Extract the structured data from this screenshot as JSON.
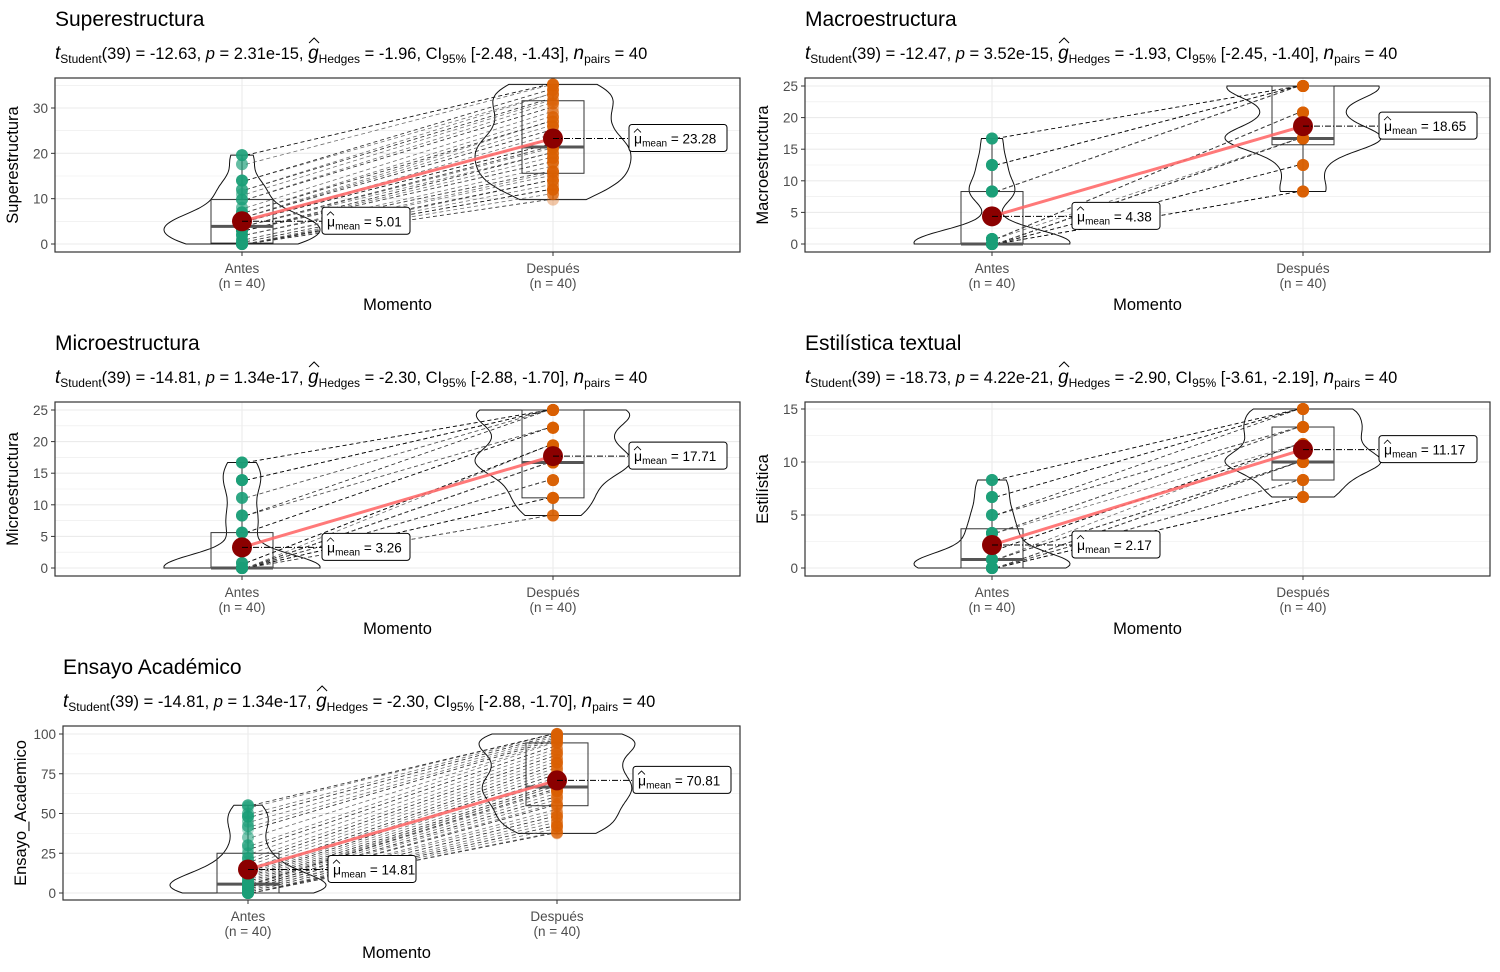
{
  "chart_data": [
    {
      "type": "violin-box-paired",
      "title": "Superestructura",
      "subtitle": {
        "t_label": "t",
        "t_sub": "Student",
        "df": "(39)",
        "t_value": "-12.63",
        "p_label": "p",
        "p_value": "2.31e-15",
        "g_label": "g",
        "g_sub": "Hedges",
        "g_value": "-1.96",
        "ci_label": "CI",
        "ci_sub": "95%",
        "ci_value": "[-2.48, -1.43]",
        "n_label": "n",
        "n_sub": "pairs",
        "n_value": "40"
      },
      "xlabel": "Momento",
      "ylabel": "Superestructura",
      "categories": [
        "Antes",
        "Después"
      ],
      "category_n": [
        "(n = 40)",
        "(n = 40)"
      ],
      "yticks": [
        0,
        10,
        20,
        30
      ],
      "ylim": [
        -1.5,
        36.5
      ],
      "means": [
        5.01,
        23.28
      ],
      "mean_labels": [
        "5.01",
        "23.28"
      ],
      "medians": [
        3.9,
        21.4
      ],
      "q1": [
        0.2,
        15.6
      ],
      "q3": [
        9.8,
        31.6
      ],
      "min": [
        0,
        9.8
      ],
      "max": [
        19.6,
        35.2
      ],
      "points": [
        [
          0,
          0,
          0,
          0,
          0,
          0,
          0.5,
          1,
          1,
          2,
          2,
          2,
          3,
          3,
          3,
          3,
          4,
          4,
          4,
          4,
          5,
          5,
          5,
          5,
          6,
          6,
          6,
          7,
          7,
          8,
          9.8,
          9.8,
          11,
          12,
          12,
          14,
          14,
          17.6,
          19.6,
          19.6
        ],
        [
          9.8,
          11,
          12,
          12,
          13,
          14,
          14,
          15,
          15.6,
          16,
          16,
          17,
          18,
          18,
          19,
          20,
          20,
          21,
          21.4,
          21.4,
          22,
          22,
          23,
          24,
          25,
          26,
          27,
          27,
          28,
          29,
          30,
          31,
          31.6,
          32,
          33,
          33,
          34,
          35,
          35.2,
          35.2
        ]
      ]
    },
    {
      "type": "violin-box-paired",
      "title": "Macroestructura",
      "subtitle": {
        "t_label": "t",
        "t_sub": "Student",
        "df": "(39)",
        "t_value": "-12.47",
        "p_label": "p",
        "p_value": "3.52e-15",
        "g_label": "g",
        "g_sub": "Hedges",
        "g_value": "-1.93",
        "ci_label": "CI",
        "ci_sub": "95%",
        "ci_value": "[-2.45, -1.40]",
        "n_label": "n",
        "n_sub": "pairs",
        "n_value": "40"
      },
      "xlabel": "Momento",
      "ylabel": "Macroestructura",
      "categories": [
        "Antes",
        "Después"
      ],
      "category_n": [
        "(n = 40)",
        "(n = 40)"
      ],
      "yticks": [
        0,
        5,
        10,
        15,
        20,
        25
      ],
      "ylim": [
        -1.2,
        26.2
      ],
      "means": [
        4.38,
        18.65
      ],
      "mean_labels": [
        "4.38",
        "18.65"
      ],
      "medians": [
        0,
        16.7
      ],
      "q1": [
        0,
        15.7
      ],
      "q3": [
        8.3,
        25
      ],
      "min": [
        0,
        8.3
      ],
      "max": [
        16.7,
        25
      ],
      "points": [
        [
          0,
          0,
          0,
          0,
          0,
          0,
          0,
          0,
          0,
          0,
          0,
          0,
          0,
          0,
          0,
          0,
          0,
          0,
          0,
          0,
          0.8,
          0.8,
          0.8,
          0.8,
          0.8,
          0.8,
          8.3,
          8.3,
          8.3,
          8.3,
          8.3,
          8.3,
          8.3,
          12.5,
          12.5,
          12.5,
          12.5,
          16.7,
          16.7,
          16.7
        ],
        [
          8.3,
          8.3,
          8.3,
          8.3,
          12.5,
          12.5,
          12.5,
          16.7,
          16.7,
          16.7,
          16.7,
          16.7,
          16.7,
          16.7,
          16.7,
          16.7,
          16.7,
          16.7,
          16.7,
          16.7,
          16.7,
          20.8,
          20.8,
          20.8,
          20.8,
          20.8,
          25,
          25,
          25,
          25,
          25,
          25,
          25,
          25,
          25,
          25,
          25,
          25,
          25,
          25
        ]
      ]
    },
    {
      "type": "violin-box-paired",
      "title": "Microestructura",
      "subtitle": {
        "t_label": "t",
        "t_sub": "Student",
        "df": "(39)",
        "t_value": "-14.81",
        "p_label": "p",
        "p_value": "1.34e-17",
        "g_label": "g",
        "g_sub": "Hedges",
        "g_value": "-2.30",
        "ci_label": "CI",
        "ci_sub": "95%",
        "ci_value": "[-2.88, -1.70]",
        "n_label": "n",
        "n_sub": "pairs",
        "n_value": "40"
      },
      "xlabel": "Momento",
      "ylabel": "Microestructura",
      "categories": [
        "Antes",
        "Después"
      ],
      "category_n": [
        "(n = 40)",
        "(n = 40)"
      ],
      "yticks": [
        0,
        5,
        10,
        15,
        20,
        25
      ],
      "ylim": [
        -1.2,
        26.2
      ],
      "means": [
        3.26,
        17.71
      ],
      "mean_labels": [
        "3.26",
        "17.71"
      ],
      "medians": [
        0,
        16.7
      ],
      "q1": [
        0,
        11.1
      ],
      "q3": [
        5.6,
        25
      ],
      "min": [
        0,
        8.3
      ],
      "max": [
        16.7,
        25
      ],
      "points": [
        [
          0,
          0,
          0,
          0,
          0,
          0,
          0,
          0,
          0,
          0,
          0,
          0,
          0,
          0,
          0,
          0,
          0,
          0,
          0,
          0,
          0,
          0.8,
          0.8,
          0.8,
          0.8,
          5.6,
          5.6,
          5.6,
          8.3,
          8.3,
          8.3,
          11.1,
          11.1,
          13.9,
          13.9,
          13.9,
          13.9,
          16.7,
          16.7,
          16.7
        ],
        [
          8.3,
          8.3,
          8.3,
          11.1,
          11.1,
          11.1,
          11.1,
          13.9,
          13.9,
          13.9,
          13.9,
          16.7,
          16.7,
          16.7,
          16.7,
          16.7,
          16.7,
          16.7,
          16.7,
          16.7,
          19.4,
          19.4,
          19.4,
          19.4,
          19.4,
          22.2,
          22.2,
          22.2,
          22.2,
          22.2,
          25,
          25,
          25,
          25,
          25,
          25,
          25,
          25,
          25,
          25
        ]
      ]
    },
    {
      "type": "violin-box-paired",
      "title": "Estilística textual",
      "subtitle": {
        "t_label": "t",
        "t_sub": "Student",
        "df": "(39)",
        "t_value": "-18.73",
        "p_label": "p",
        "p_value": "4.22e-21",
        "g_label": "g",
        "g_sub": "Hedges",
        "g_value": "-2.90",
        "ci_label": "CI",
        "ci_sub": "95%",
        "ci_value": "[-3.61, -2.19]",
        "n_label": "n",
        "n_sub": "pairs",
        "n_value": "40"
      },
      "xlabel": "Momento",
      "ylabel": "Estilística",
      "categories": [
        "Antes",
        "Después"
      ],
      "category_n": [
        "(n = 40)",
        "(n = 40)"
      ],
      "yticks": [
        0,
        5,
        10,
        15
      ],
      "ylim": [
        -0.7,
        15.7
      ],
      "means": [
        2.17,
        11.17
      ],
      "mean_labels": [
        "2.17",
        "11.17"
      ],
      "medians": [
        0.8,
        10
      ],
      "q1": [
        0,
        8.3
      ],
      "q3": [
        3.7,
        13.3
      ],
      "min": [
        0,
        6.7
      ],
      "max": [
        8.3,
        15
      ],
      "points": [
        [
          0,
          0,
          0,
          0,
          0,
          0,
          0,
          0,
          0,
          0,
          0,
          0,
          0,
          0,
          0.8,
          0.8,
          0.8,
          0.8,
          0.8,
          0.8,
          0.8,
          1.7,
          1.7,
          1.7,
          1.7,
          3.3,
          3.3,
          3.3,
          3.3,
          3.3,
          5,
          5,
          5,
          5,
          6.7,
          6.7,
          6.7,
          8.3,
          8.3,
          8.3
        ],
        [
          6.7,
          6.7,
          6.7,
          6.7,
          8.3,
          8.3,
          8.3,
          8.3,
          8.3,
          10,
          10,
          10,
          10,
          10,
          10,
          10,
          10,
          10,
          10,
          10,
          11.7,
          11.7,
          11.7,
          11.7,
          11.7,
          11.7,
          13.3,
          13.3,
          13.3,
          13.3,
          13.3,
          13.3,
          13.3,
          15,
          15,
          15,
          15,
          15,
          15,
          15
        ]
      ]
    },
    {
      "type": "violin-box-paired",
      "title": "Ensayo Académico",
      "subtitle": {
        "t_label": "t",
        "t_sub": "Student",
        "df": "(39)",
        "t_value": "-14.81",
        "p_label": "p",
        "p_value": "1.34e-17",
        "g_label": "g",
        "g_sub": "Hedges",
        "g_value": "-2.30",
        "ci_label": "CI",
        "ci_sub": "95%",
        "ci_value": "[-2.88, -1.70]",
        "n_label": "n",
        "n_sub": "pairs",
        "n_value": "40"
      },
      "xlabel": "Momento",
      "ylabel": "Ensayo_Academico",
      "categories": [
        "Antes",
        "Después"
      ],
      "category_n": [
        "(n = 40)",
        "(n = 40)"
      ],
      "yticks": [
        0,
        25,
        50,
        75,
        100
      ],
      "ylim": [
        -5,
        104.5
      ],
      "means": [
        14.81,
        70.81
      ],
      "mean_labels": [
        "14.81",
        "70.81"
      ],
      "medians": [
        5.6,
        66.7
      ],
      "q1": [
        0,
        54.9
      ],
      "q3": [
        25,
        94.4
      ],
      "min": [
        0,
        37.5
      ],
      "max": [
        55.2,
        100
      ],
      "points": [
        [
          0,
          0,
          0,
          0,
          0,
          0,
          1,
          2,
          2,
          3,
          3,
          4,
          4,
          5,
          5.6,
          5.6,
          6,
          7,
          8,
          9,
          10,
          11,
          12,
          13,
          14,
          16,
          18,
          20,
          22,
          25,
          28,
          30,
          35,
          40,
          42,
          45,
          48,
          50,
          54,
          55.2
        ],
        [
          37.5,
          38,
          40,
          42,
          44,
          46,
          48,
          50,
          52,
          54.9,
          56,
          58,
          60,
          62,
          64,
          65,
          66.7,
          66.7,
          68,
          70,
          72,
          74,
          76,
          78,
          80,
          82,
          84,
          86,
          88,
          90,
          92,
          94.4,
          95,
          96,
          97,
          98,
          99,
          100,
          100,
          100
        ]
      ]
    }
  ],
  "colors": {
    "antes_point": "#1b9e77",
    "despues_point": "#d95f02",
    "mean_point": "#8b0000",
    "mean_line": "#ff6b6b",
    "grid": "#ebebeb",
    "panel_border": "#333333"
  },
  "mean_label_prefix": "μ",
  "mean_label_sub": "mean"
}
